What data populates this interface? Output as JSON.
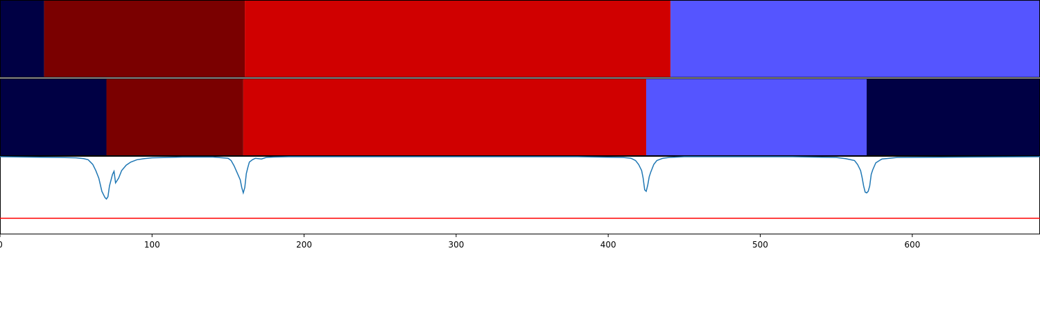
{
  "chart_data": {
    "type": "segmentation-track",
    "title": "",
    "xlabel": "",
    "xlim": [
      0,
      684
    ],
    "x_ticks": [
      "0",
      "100",
      "200",
      "300",
      "400",
      "500",
      "600"
    ],
    "x_tick_values": [
      0,
      100,
      200,
      300,
      400,
      500,
      600
    ],
    "colors": {
      "navy": "#000044",
      "darkred": "#7a0000",
      "red": "#d00000",
      "blue": "#5555ff",
      "line": "#1f77b4",
      "threshold": "#ff0000"
    },
    "rows": [
      {
        "segments": [
          {
            "start": 0,
            "end": 29,
            "color": "navy"
          },
          {
            "start": 29,
            "end": 161,
            "color": "darkred"
          },
          {
            "start": 161,
            "end": 441,
            "color": "red"
          },
          {
            "start": 441,
            "end": 684,
            "color": "blue"
          }
        ]
      },
      {
        "segments": [
          {
            "start": 0,
            "end": 70,
            "color": "navy"
          },
          {
            "start": 70,
            "end": 160,
            "color": "darkred"
          },
          {
            "start": 160,
            "end": 425,
            "color": "red"
          },
          {
            "start": 425,
            "end": 570,
            "color": "blue"
          },
          {
            "start": 570,
            "end": 684,
            "color": "navy"
          }
        ]
      }
    ],
    "signal": {
      "ylim": [
        0,
        1
      ],
      "baseline": 1.0,
      "threshold": 0.2,
      "x": [
        0,
        40,
        50,
        55,
        58,
        61,
        63,
        65,
        67,
        69,
        70,
        71,
        72,
        74,
        75,
        76,
        78,
        80,
        83,
        86,
        90,
        95,
        100,
        110,
        120,
        140,
        150,
        152,
        154,
        156,
        158,
        159,
        160,
        161,
        162,
        163,
        164,
        166,
        168,
        172,
        175,
        180,
        190,
        200,
        300,
        380,
        410,
        415,
        418,
        420,
        422,
        423,
        424,
        425,
        426,
        427,
        428,
        430,
        432,
        436,
        440,
        450,
        520,
        550,
        556,
        562,
        564,
        566,
        567,
        568,
        569,
        570,
        571,
        572,
        573,
        574,
        576,
        580,
        590,
        684
      ],
      "y": [
        1.0,
        0.99,
        0.985,
        0.975,
        0.96,
        0.9,
        0.82,
        0.72,
        0.55,
        0.47,
        0.45,
        0.48,
        0.62,
        0.77,
        0.81,
        0.66,
        0.72,
        0.82,
        0.89,
        0.93,
        0.96,
        0.975,
        0.985,
        0.99,
        0.995,
        0.995,
        0.98,
        0.95,
        0.88,
        0.79,
        0.7,
        0.6,
        0.53,
        0.6,
        0.78,
        0.86,
        0.93,
        0.96,
        0.98,
        0.97,
        0.99,
        0.995,
        1.0,
        1.0,
        1.0,
        1.0,
        0.99,
        0.98,
        0.95,
        0.9,
        0.82,
        0.72,
        0.57,
        0.55,
        0.63,
        0.74,
        0.8,
        0.9,
        0.95,
        0.98,
        0.99,
        1.0,
        1.0,
        0.99,
        0.975,
        0.95,
        0.9,
        0.82,
        0.73,
        0.62,
        0.54,
        0.53,
        0.55,
        0.62,
        0.77,
        0.83,
        0.92,
        0.97,
        0.99,
        1.0
      ]
    }
  }
}
